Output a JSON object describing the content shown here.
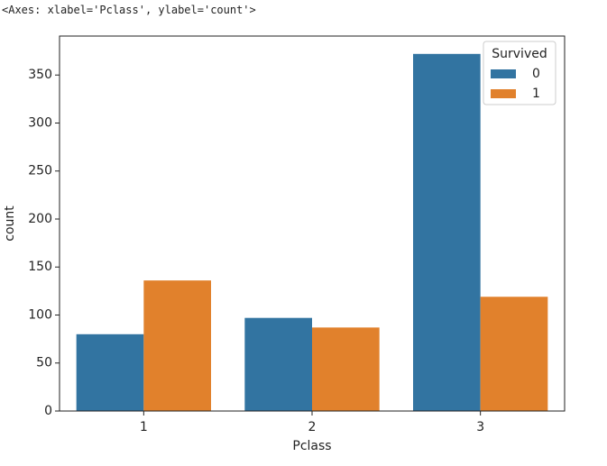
{
  "output_text": "<Axes: xlabel='Pclass', ylabel='count'>",
  "chart_data": {
    "type": "bar",
    "xlabel": "Pclass",
    "ylabel": "count",
    "categories": [
      "1",
      "2",
      "3"
    ],
    "series": [
      {
        "name": "0",
        "color": "#3274a1",
        "values": [
          80,
          97,
          372
        ]
      },
      {
        "name": "1",
        "color": "#e1812c",
        "values": [
          136,
          87,
          119
        ]
      }
    ],
    "legend_title": "Survived",
    "legend": "upper right",
    "ylim": [
      0,
      390.6
    ],
    "yticks": [
      0,
      50,
      100,
      150,
      200,
      250,
      300,
      350
    ]
  }
}
